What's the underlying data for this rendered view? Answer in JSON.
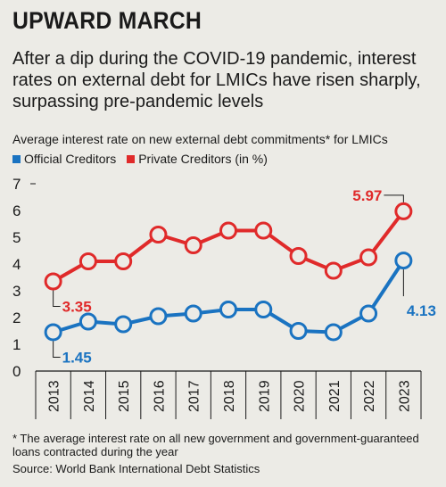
{
  "title": "UPWARD MARCH",
  "subtitle": "After a dip during the COVID-19 pandemic, interest rates on external debt for LMICs have risen sharply, surpassing pre-pandemic levels",
  "chart_description": "Average interest rate on new external debt commitments* for LMICs",
  "footnote": "* The average interest rate on all new government and government-guaranteed loans contracted during the year",
  "source": "Source: World Bank International Debt Statistics",
  "colors": {
    "official": "#1a73c1",
    "private": "#e02a2a",
    "background": "#ecebe6"
  },
  "chart_data": {
    "type": "line",
    "x": [
      "2013",
      "2014",
      "2015",
      "2016",
      "2017",
      "2018",
      "2019",
      "2020",
      "2021",
      "2022",
      "2023"
    ],
    "ylim": [
      0,
      7
    ],
    "yticks": [
      "0",
      "1",
      "2",
      "3",
      "4",
      "5",
      "6",
      "7"
    ],
    "grid": false,
    "legend_position": "top-left",
    "series": [
      {
        "name": "Official Creditors",
        "color": "#1a73c1",
        "values": [
          1.45,
          1.85,
          1.75,
          2.05,
          2.15,
          2.3,
          2.3,
          1.5,
          1.45,
          2.15,
          4.13
        ]
      },
      {
        "name": "Private Creditors (in %)",
        "color": "#e02a2a",
        "values": [
          3.35,
          4.1,
          4.1,
          5.1,
          4.7,
          5.25,
          5.25,
          4.3,
          3.75,
          4.25,
          5.97
        ]
      }
    ],
    "annotations": [
      {
        "series": 1,
        "index": 0,
        "text": "3.35"
      },
      {
        "series": 0,
        "index": 0,
        "text": "1.45"
      },
      {
        "series": 1,
        "index": 10,
        "text": "5.97"
      },
      {
        "series": 0,
        "index": 10,
        "text": "4.13"
      }
    ]
  }
}
